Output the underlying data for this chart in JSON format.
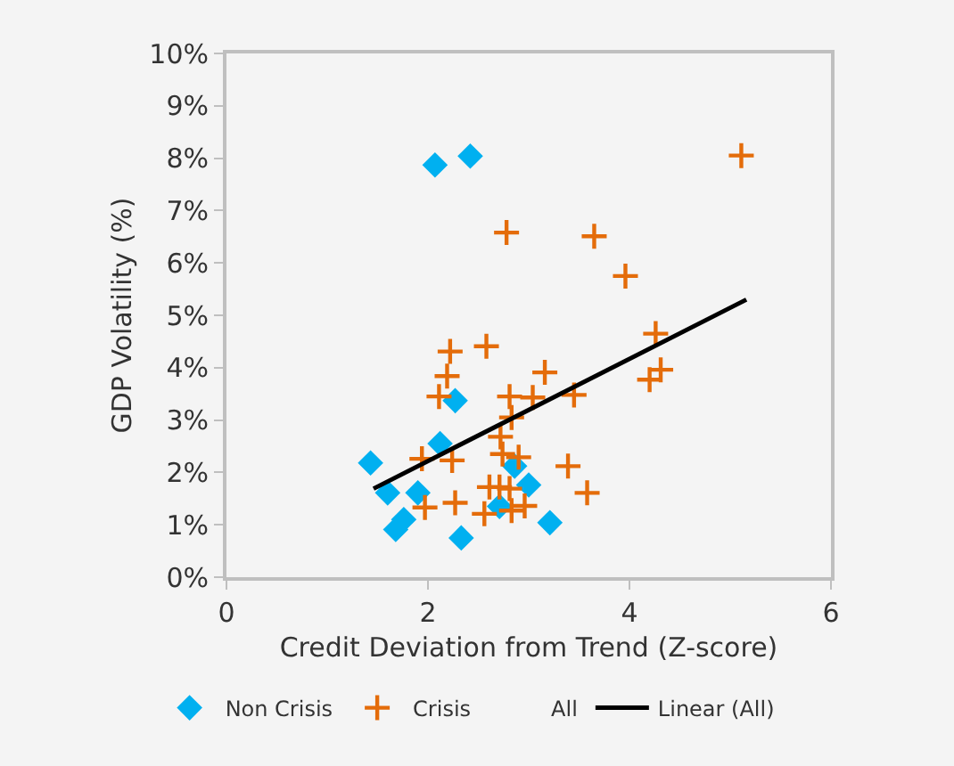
{
  "chart_data": {
    "type": "scatter",
    "xlabel": "Credit Deviation from Trend (Z-score)",
    "ylabel": "GDP Volatility (%)",
    "xlim": [
      0,
      6
    ],
    "xticks": [
      0,
      2,
      4,
      6
    ],
    "ylim": [
      0,
      10
    ],
    "yticks": [
      {
        "value": 0,
        "label": "0%"
      },
      {
        "value": 1,
        "label": "1%"
      },
      {
        "value": 2,
        "label": "2%"
      },
      {
        "value": 3,
        "label": "3%"
      },
      {
        "value": 4,
        "label": "4%"
      },
      {
        "value": 5,
        "label": "5%"
      },
      {
        "value": 6,
        "label": "6%"
      },
      {
        "value": 7,
        "label": "7%"
      },
      {
        "value": 8,
        "label": "8%"
      },
      {
        "value": 9,
        "label": "9%"
      },
      {
        "value": 10,
        "label": "10%"
      }
    ],
    "grid": false,
    "legend": "bottom",
    "series": [
      {
        "name": "Non Crisis",
        "color": "#00b0f0",
        "marker": "diamond",
        "x": [
          2.07,
          2.42,
          2.27,
          2.12,
          1.43,
          2.86,
          1.6,
          1.9,
          3.0,
          2.71,
          1.76,
          1.68,
          3.21,
          2.33
        ],
        "values": [
          7.87,
          8.04,
          3.37,
          2.55,
          2.18,
          2.12,
          1.61,
          1.61,
          1.76,
          1.35,
          1.1,
          0.91,
          1.04,
          0.75
        ]
      },
      {
        "name": "Crisis",
        "color": "#e46c0a",
        "marker": "cross",
        "x": [
          5.11,
          2.78,
          3.65,
          3.96,
          4.26,
          2.22,
          2.58,
          2.19,
          3.16,
          4.31,
          4.2,
          2.11,
          2.81,
          3.04,
          3.45,
          2.83,
          2.72,
          2.74,
          2.9,
          1.94,
          2.24,
          3.39,
          2.61,
          2.71,
          2.81,
          3.58,
          1.97,
          2.27,
          2.56,
          2.83,
          2.96
        ],
        "values": [
          8.05,
          6.58,
          6.51,
          5.75,
          4.65,
          4.31,
          4.41,
          3.84,
          3.91,
          3.96,
          3.77,
          3.45,
          3.45,
          3.43,
          3.48,
          3.05,
          2.68,
          2.35,
          2.29,
          2.26,
          2.23,
          2.12,
          1.72,
          1.72,
          1.69,
          1.61,
          1.33,
          1.42,
          1.21,
          1.27,
          1.36
        ]
      },
      {
        "name": "All",
        "marker": "none"
      },
      {
        "name": "Linear (All)",
        "type": "line",
        "color": "#000000",
        "line_style": "solid",
        "marker": "none",
        "x": [
          1.46,
          5.16
        ],
        "values": [
          1.69,
          5.3
        ]
      }
    ]
  }
}
